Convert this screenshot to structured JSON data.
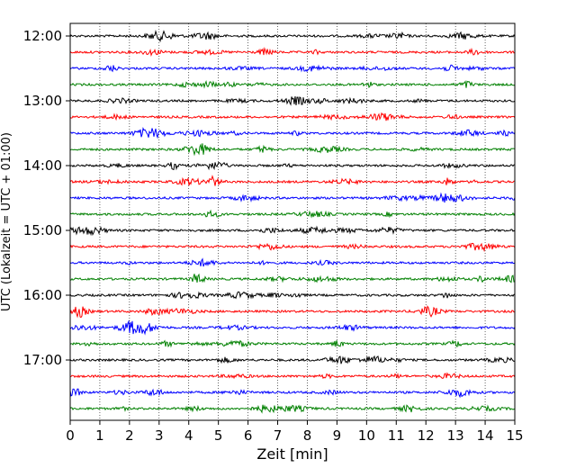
{
  "chart_data": {
    "type": "line",
    "subtype": "helicorder",
    "xlabel": "Zeit  [min]",
    "ylabel": "UTC (Lokalzeit = UTC + 01:00)",
    "xlim": [
      0,
      15
    ],
    "x_ticks": [
      "0",
      "1",
      "2",
      "3",
      "4",
      "5",
      "6",
      "7",
      "8",
      "9",
      "10",
      "11",
      "12",
      "13",
      "14",
      "15"
    ],
    "y_tick_labels": [
      "12:00",
      "13:00",
      "14:00",
      "15:00",
      "16:00",
      "17:00"
    ],
    "trace_interval_min": 15,
    "traces_per_hour": 4,
    "first_trace": "12:00",
    "last_trace": "17:45",
    "trace_count": 24,
    "trace_color_cycle": [
      "#000000",
      "#ff0000",
      "#0000ff",
      "#008000"
    ],
    "x_grid": "dotted vertical lines at each minute",
    "legend": "none"
  }
}
